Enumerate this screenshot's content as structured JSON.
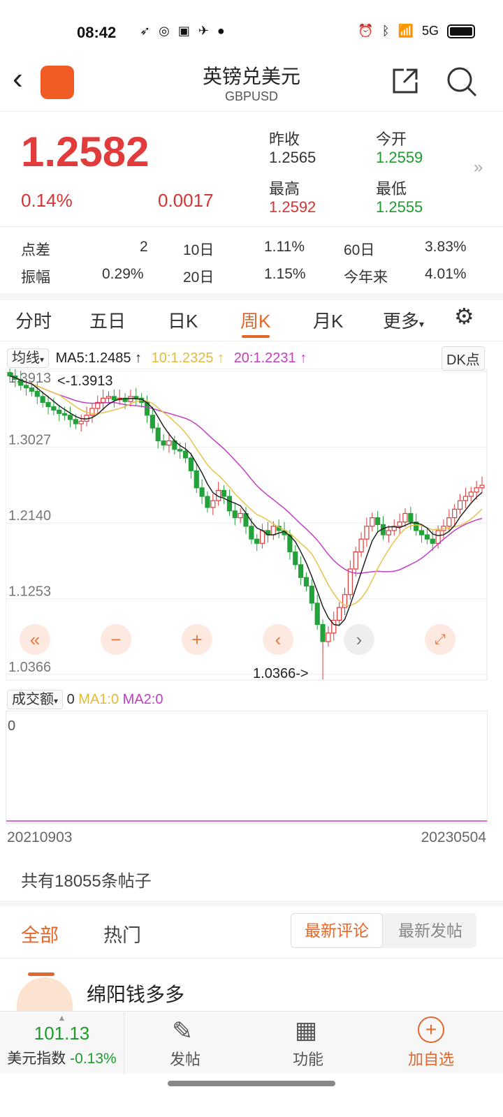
{
  "status": {
    "time": "08:42",
    "network": "5G"
  },
  "header": {
    "title": "英镑兑美元",
    "code": "GBPUSD"
  },
  "quote": {
    "price": "1.2582",
    "change_pct": "0.14%",
    "change": "0.0017",
    "prev_close_label": "昨收",
    "prev_close": "1.2565",
    "open_label": "今开",
    "open": "1.2559",
    "high_label": "最高",
    "high": "1.2592",
    "low_label": "最低",
    "low": "1.2555"
  },
  "stats": [
    [
      "点差",
      "2"
    ],
    [
      "10日",
      "1.11%"
    ],
    [
      "60日",
      "3.83%"
    ],
    [
      "振幅",
      "0.29%"
    ],
    [
      "20日",
      "1.15%"
    ],
    [
      "今年来",
      "4.01%"
    ]
  ],
  "tabs": [
    "分时",
    "五日",
    "日K",
    "周K",
    "月K",
    "更多"
  ],
  "active_tab": "周K",
  "ma_legend": {
    "selector": "均线",
    "ma5": "MA5:1.2485",
    "ma10": "10:1.2325",
    "ma20": "20:1.2231",
    "dk": "DK点"
  },
  "colors": {
    "up": "#e03a3a",
    "down": "#23a23a",
    "ma5": "#222222",
    "ma10": "#e8c24a",
    "ma20": "#c23ec2",
    "accent": "#e2672a"
  },
  "volume_legend": {
    "selector": "成交额",
    "value": "0",
    "ma1": "MA1:0",
    "ma2": "MA2:0",
    "axis": "0"
  },
  "chart_data": {
    "type": "candlestick",
    "y_ticks": [
      "1.3913",
      "1.3027",
      "1.2140",
      "1.1253",
      "1.0366"
    ],
    "x_labels": [
      "20210903",
      "20230504"
    ],
    "max_label": "<-1.3913",
    "min_label": "1.0366->",
    "closes": [
      1.386,
      1.382,
      1.375,
      1.372,
      1.368,
      1.362,
      1.355,
      1.35,
      1.346,
      1.342,
      1.34,
      1.335,
      1.33,
      1.333,
      1.34,
      1.348,
      1.355,
      1.36,
      1.362,
      1.358,
      1.36,
      1.356,
      1.362,
      1.36,
      1.355,
      1.34,
      1.325,
      1.31,
      1.305,
      1.31,
      1.3,
      1.298,
      1.29,
      1.275,
      1.255,
      1.245,
      1.232,
      1.24,
      1.252,
      1.245,
      1.228,
      1.22,
      1.225,
      1.21,
      1.195,
      1.19,
      1.205,
      1.2,
      1.21,
      1.205,
      1.2,
      1.18,
      1.165,
      1.15,
      1.14,
      1.12,
      1.095,
      1.075,
      1.085,
      1.1,
      1.115,
      1.13,
      1.16,
      1.18,
      1.195,
      1.21,
      1.22,
      1.212,
      1.2,
      1.205,
      1.21,
      1.215,
      1.225,
      1.215,
      1.205,
      1.2,
      1.195,
      1.19,
      1.205,
      1.21,
      1.22,
      1.23,
      1.24,
      1.245,
      1.25,
      1.255,
      1.258
    ]
  },
  "posts": {
    "count": "共有18055条帖子",
    "tabs": [
      "全部",
      "热门"
    ],
    "sort": [
      "最新评论",
      "最新发帖"
    ],
    "first_author": "绵阳钱多多"
  },
  "bottom": {
    "index_value": "101.13",
    "index_label": "美元指数",
    "index_change": "-0.13%",
    "post": "发帖",
    "func": "功能",
    "add": "加自选"
  }
}
